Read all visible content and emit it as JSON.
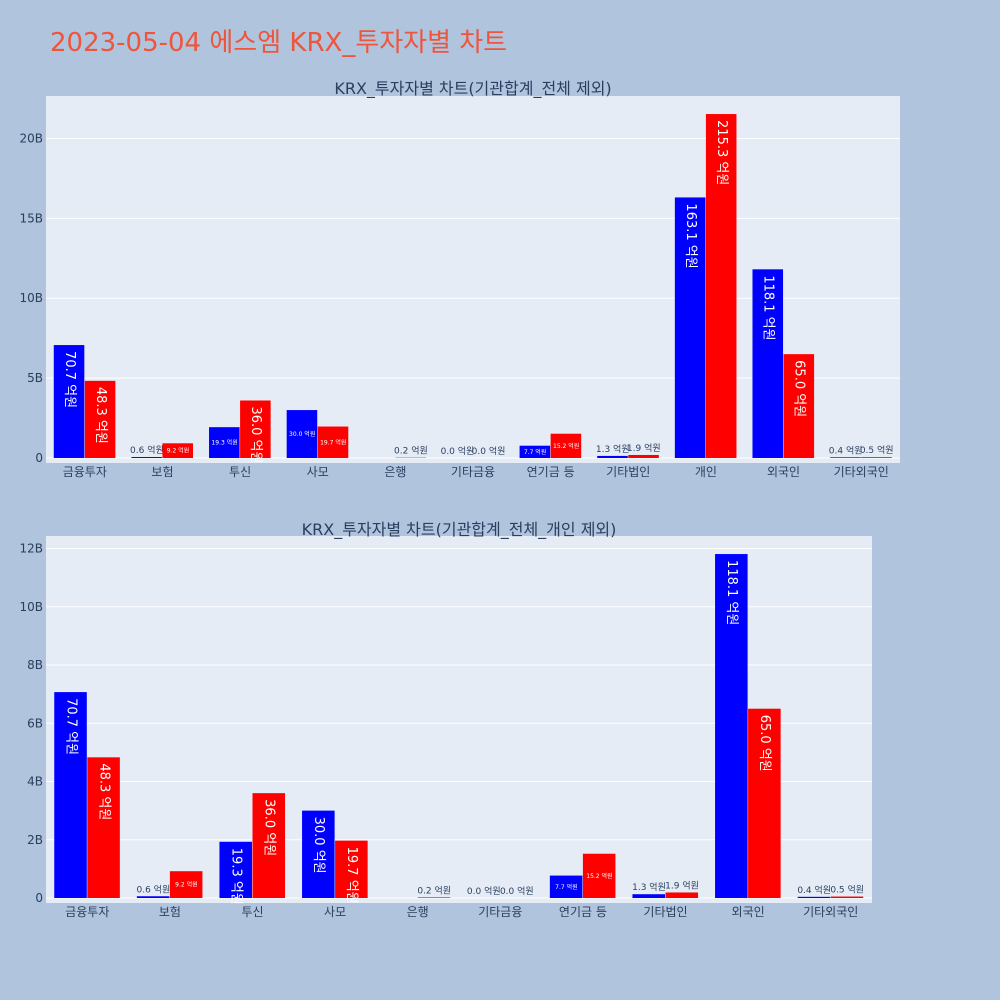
{
  "page": {
    "title": "2023-05-04 에스엠 KRX_투자자별 차트"
  },
  "colors": {
    "background": "#b0c4de",
    "plot_bg": "#e5ecf6",
    "grid": "#ffffff",
    "series_blue": "#0000ff",
    "series_red": "#ff0000",
    "title": "#ef553b"
  },
  "chart_data": [
    {
      "type": "bar",
      "title": "KRX_투자자별 차트(기관합계_전체 제외)",
      "categories": [
        "금융투자",
        "보험",
        "투신",
        "사모",
        "은행",
        "기타금융",
        "연기금 등",
        "기타법인",
        "개인",
        "외국인",
        "기타외국인"
      ],
      "series": [
        {
          "color": "#0000ff",
          "values": [
            7070000000,
            60000000,
            1930000000,
            3000000000,
            0,
            0,
            770000000,
            130000000,
            16310000000,
            11810000000,
            40000000
          ],
          "labels": [
            "70.7 억원",
            "0.6 억원",
            "19.3 억원",
            "30.0 억원",
            "",
            "0.0 억원",
            "7.7 억원",
            "1.3 억원",
            "163.1 억원",
            "118.1 억원",
            "0.4 억원"
          ]
        },
        {
          "color": "#ff0000",
          "values": [
            4830000000,
            920000000,
            3600000000,
            1970000000,
            20000000,
            0,
            1520000000,
            190000000,
            21530000000,
            6500000000,
            50000000
          ],
          "labels": [
            "48.3 억원",
            "9.2 억원",
            "36.0 억원",
            "19.7 억원",
            "0.2 억원",
            "0.0 억원",
            "15.2 억원",
            "1.9 억원",
            "215.3 억원",
            "65.0 억원",
            "0.5 억원"
          ]
        }
      ],
      "yticks": [
        {
          "value": 0,
          "label": "0"
        },
        {
          "value": 5000000000,
          "label": "5B"
        },
        {
          "value": 10000000000,
          "label": "10B"
        },
        {
          "value": 15000000000,
          "label": "15B"
        },
        {
          "value": 20000000000,
          "label": "20B"
        }
      ],
      "ylim": [
        0,
        22660000000
      ],
      "grid": true
    },
    {
      "type": "bar",
      "title": "KRX_투자자별 차트(기관합계_전체_개인 제외)",
      "categories": [
        "금융투자",
        "보험",
        "투신",
        "사모",
        "은행",
        "기타금융",
        "연기금 등",
        "기타법인",
        "외국인",
        "기타외국인"
      ],
      "series": [
        {
          "color": "#0000ff",
          "values": [
            7070000000,
            60000000,
            1930000000,
            3000000000,
            0,
            0,
            770000000,
            130000000,
            11810000000,
            40000000
          ],
          "labels": [
            "70.7 억원",
            "0.6 억원",
            "19.3 억원",
            "30.0 억원",
            "",
            "0.0 억원",
            "7.7 억원",
            "1.3 억원",
            "118.1 억원",
            "0.4 억원"
          ]
        },
        {
          "color": "#ff0000",
          "values": [
            4830000000,
            920000000,
            3600000000,
            1970000000,
            20000000,
            0,
            1520000000,
            190000000,
            6500000000,
            50000000
          ],
          "labels": [
            "48.3 억원",
            "9.2 억원",
            "36.0 억원",
            "19.7 억원",
            "0.2 억원",
            "0.0 억원",
            "15.2 억원",
            "1.9 억원",
            "65.0 억원",
            "0.5 억원"
          ]
        }
      ],
      "yticks": [
        {
          "value": 0,
          "label": "0"
        },
        {
          "value": 2000000000,
          "label": "2B"
        },
        {
          "value": 4000000000,
          "label": "4B"
        },
        {
          "value": 6000000000,
          "label": "6B"
        },
        {
          "value": 8000000000,
          "label": "8B"
        },
        {
          "value": 10000000000,
          "label": "10B"
        },
        {
          "value": 12000000000,
          "label": "12B"
        }
      ],
      "ylim": [
        0,
        12430000000
      ],
      "grid": true
    }
  ]
}
